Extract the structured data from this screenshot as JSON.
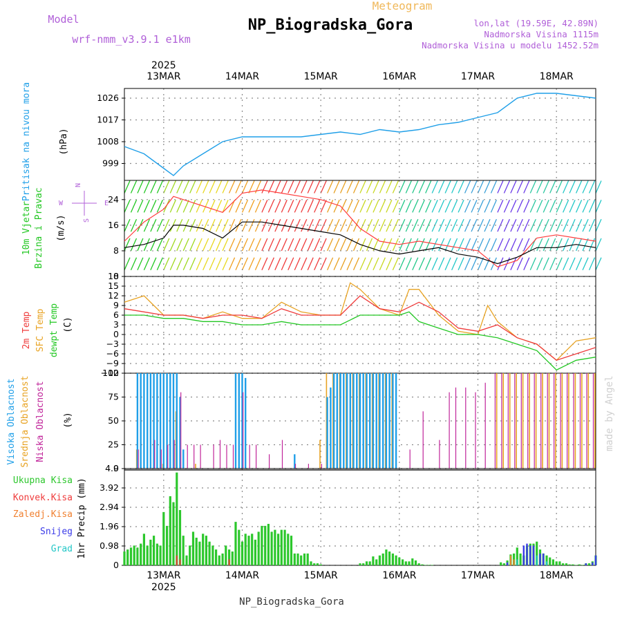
{
  "header": {
    "title": "NP_Biogradska_Gora",
    "product": "Meteogram",
    "model_label": "Model",
    "model_name": "wrf-nmm_v3.9.1 e1km",
    "coords": "lon,lat (19.59E, 42.89N)",
    "altitude": "Nadmorska Visina 1115m",
    "model_altitude": "Nadmorska Visina u modelu 1452.52m",
    "footer": "NP_Biogradska_Gora",
    "watermark": "made by Angel"
  },
  "time_axis": {
    "year": "2025",
    "days": [
      "13MAR",
      "14MAR",
      "15MAR",
      "16MAR",
      "17MAR",
      "18MAR"
    ],
    "start_hours": -12,
    "end_hours": 132
  },
  "colors": {
    "pressure": "#1f9fe8",
    "wind_speed": "#000000",
    "wind_gust": "#ff3b3b",
    "temp_2m": "#ef3b3b",
    "temp_sfc": "#e8a323",
    "dewpoint": "#22c722",
    "cloud_high": "#1f9fe8",
    "cloud_mid": "#e8a323",
    "cloud_low": "#c0249a",
    "precip_total": "#2cc72c",
    "precip_conv": "#ef3b3b",
    "precip_frozen": "#f08030",
    "precip_snow": "#3a3ae8",
    "precip_graupel": "#22c7c7",
    "label_purple": "#b05fd8",
    "label_orange": "#f0b85a"
  },
  "chart_data": [
    {
      "type": "line",
      "panel": "pressure",
      "ylabel": "Pritisak na nivou mora",
      "unit": "(hPa)",
      "yticks": [
        999,
        1008,
        1017,
        1026
      ],
      "ylim": [
        992,
        1030
      ],
      "series": [
        {
          "x": [
            -12,
            -6,
            0,
            3,
            6,
            12,
            18,
            24,
            30,
            36,
            42,
            48,
            54,
            60,
            66,
            72,
            78,
            84,
            90,
            96,
            102,
            108,
            114,
            120,
            126,
            132
          ],
          "values": [
            1006,
            1003,
            997,
            994,
            998,
            1003,
            1008,
            1010,
            1010,
            1010,
            1010,
            1011,
            1012,
            1011,
            1013,
            1012,
            1013,
            1015,
            1016,
            1018,
            1020,
            1026,
            1028,
            1028,
            1027,
            1026
          ]
        }
      ]
    },
    {
      "type": "line",
      "panel": "wind",
      "ylabel": [
        "10m Vjetar",
        "Brzina i Pravac"
      ],
      "unit": "(m/s)",
      "compass": [
        "N",
        "W",
        "E",
        "S"
      ],
      "yticks": [
        0,
        8,
        16,
        24
      ],
      "ylim": [
        0,
        30
      ],
      "series": [
        {
          "x": [
            -12,
            -6,
            0,
            3,
            6,
            12,
            18,
            24,
            30,
            36,
            42,
            48,
            54,
            60,
            66,
            72,
            78,
            84,
            90,
            96,
            102,
            108,
            114,
            120,
            126,
            132
          ],
          "values": [
            9,
            10,
            12,
            16,
            16,
            15,
            12,
            17,
            17,
            16,
            15,
            14,
            13,
            10,
            8,
            7,
            8,
            9,
            7,
            6,
            4,
            6,
            9,
            9,
            10,
            9
          ]
        },
        {
          "x": [
            -12,
            -6,
            0,
            3,
            6,
            12,
            18,
            24,
            30,
            36,
            42,
            48,
            54,
            60,
            66,
            72,
            78,
            84,
            90,
            96,
            102,
            108,
            114,
            120,
            126,
            132
          ],
          "values": [
            11,
            17,
            21,
            25,
            24,
            22,
            20,
            26,
            27,
            26,
            25,
            24,
            22,
            15,
            11,
            10,
            11,
            10,
            9,
            8,
            3,
            5,
            12,
            13,
            12,
            11
          ]
        }
      ]
    },
    {
      "type": "line",
      "panel": "temperature",
      "ylabel": [
        "2m Temp",
        "SFC Temp",
        "dewpt Temp"
      ],
      "unit": "(C)",
      "yticks": [
        -12,
        -9,
        -6,
        -3,
        0,
        3,
        6,
        9,
        12,
        15,
        18
      ],
      "ylim": [
        -12,
        18
      ],
      "series": [
        {
          "name": "2m Temp",
          "x": [
            -12,
            -6,
            0,
            6,
            12,
            18,
            24,
            30,
            36,
            42,
            48,
            54,
            60,
            66,
            72,
            78,
            84,
            90,
            96,
            102,
            108,
            114,
            120,
            126,
            132
          ],
          "values": [
            8,
            7,
            6,
            6,
            5,
            6,
            6,
            5,
            8,
            6,
            6,
            6,
            12,
            8,
            7,
            10,
            7,
            2,
            1,
            3,
            -1,
            -3,
            -8,
            -6,
            -4
          ]
        },
        {
          "name": "SFC Temp",
          "x": [
            -12,
            -6,
            -3,
            0,
            6,
            12,
            18,
            24,
            30,
            36,
            42,
            48,
            54,
            57,
            60,
            66,
            72,
            75,
            78,
            84,
            90,
            96,
            99,
            102,
            108,
            114,
            120,
            126,
            132
          ],
          "values": [
            10,
            12,
            9,
            6,
            6,
            5,
            7,
            5,
            5,
            10,
            7,
            6,
            6,
            16,
            14,
            8,
            6,
            14,
            14,
            6,
            1,
            0,
            9,
            4,
            -1,
            -3,
            -8,
            -2,
            -1
          ]
        },
        {
          "name": "dewpt Temp",
          "x": [
            -12,
            -6,
            0,
            6,
            12,
            18,
            24,
            30,
            36,
            42,
            48,
            54,
            60,
            66,
            72,
            75,
            78,
            84,
            90,
            96,
            102,
            108,
            114,
            120,
            126,
            132
          ],
          "values": [
            6,
            6,
            5,
            5,
            4,
            4,
            3,
            3,
            4,
            3,
            3,
            3,
            6,
            6,
            6,
            7,
            4,
            2,
            0,
            0,
            -1,
            -3,
            -5,
            -11,
            -8,
            -7
          ]
        }
      ]
    },
    {
      "type": "bar",
      "panel": "cloud",
      "ylabel": [
        "Visoka Oblacnost",
        "Srednja Oblacnost",
        "Niska Oblacnost"
      ],
      "unit": "(%)",
      "yticks": [
        0,
        25,
        50,
        75,
        100
      ],
      "ylim": [
        0,
        100
      ],
      "series": [
        {
          "name": "Visoka Oblacnost",
          "x": [
            -8,
            -7,
            -6,
            -5,
            -4,
            -3,
            -2,
            -1,
            0,
            1,
            2,
            3,
            4,
            5,
            6,
            22,
            23,
            24,
            25,
            40,
            50,
            51,
            52,
            53,
            54,
            55,
            56,
            57,
            58,
            59,
            60,
            61,
            62,
            63,
            64,
            65,
            66,
            67,
            68,
            69,
            70,
            71
          ],
          "values": [
            100,
            100,
            100,
            100,
            100,
            100,
            100,
            100,
            100,
            100,
            100,
            100,
            100,
            75,
            20,
            100,
            100,
            100,
            95,
            15,
            75,
            85,
            100,
            100,
            100,
            100,
            100,
            100,
            100,
            100,
            100,
            100,
            100,
            100,
            100,
            100,
            100,
            100,
            100,
            100,
            100,
            100
          ]
        },
        {
          "name": "Srednja Oblacnost",
          "x": [
            -8,
            0,
            4,
            10,
            48,
            50,
            52,
            54,
            56,
            58,
            60,
            62,
            64,
            66,
            68,
            70,
            102,
            104,
            106,
            108,
            110,
            112,
            114,
            116,
            118,
            120,
            122,
            124,
            126,
            128,
            130,
            132
          ],
          "values": [
            20,
            5,
            60,
            5,
            30,
            100,
            100,
            100,
            100,
            100,
            100,
            100,
            100,
            100,
            100,
            100,
            100,
            100,
            100,
            100,
            100,
            100,
            100,
            100,
            100,
            100,
            100,
            100,
            100,
            100,
            100,
            100
          ]
        },
        {
          "name": "Niska Oblacnost",
          "x": [
            -8,
            -3,
            -1,
            1,
            3,
            5,
            7,
            9,
            11,
            15,
            17,
            19,
            21,
            24,
            26,
            28,
            32,
            36,
            40,
            44,
            48,
            75,
            79,
            84,
            87,
            89,
            92,
            95,
            98,
            101,
            103,
            105,
            107,
            109,
            111,
            113,
            115,
            117,
            119,
            121,
            123,
            125,
            127,
            129,
            131
          ],
          "values": [
            20,
            30,
            20,
            25,
            30,
            80,
            25,
            25,
            25,
            25,
            30,
            25,
            25,
            80,
            25,
            25,
            15,
            30,
            5,
            5,
            5,
            20,
            60,
            30,
            80,
            85,
            85,
            80,
            90,
            100,
            100,
            100,
            100,
            100,
            100,
            100,
            100,
            100,
            100,
            100,
            100,
            100,
            100,
            100,
            100
          ]
        }
      ]
    },
    {
      "type": "bar",
      "panel": "precip",
      "ylabel": [
        "Ukupna Kisa",
        "Konvek.Kisa",
        "Zaledj.Kisa",
        "Snijeg",
        "Grad"
      ],
      "unit": "1hr Precip (mm)",
      "yticks": [
        0,
        0.98,
        1.96,
        2.94,
        3.92,
        4.9
      ],
      "ylim": [
        0,
        4.9
      ],
      "series": [
        {
          "name": "Ukupna Kisa",
          "x": [
            -12,
            -11,
            -10,
            -9,
            -8,
            -7,
            -6,
            -5,
            -4,
            -3,
            -2,
            -1,
            0,
            1,
            2,
            3,
            4,
            5,
            6,
            7,
            8,
            9,
            10,
            11,
            12,
            13,
            14,
            15,
            16,
            17,
            18,
            19,
            20,
            21,
            22,
            23,
            24,
            25,
            26,
            27,
            28,
            29,
            30,
            31,
            32,
            33,
            34,
            35,
            36,
            37,
            38,
            39,
            40,
            41,
            42,
            43,
            44,
            45,
            46,
            47,
            48,
            60,
            61,
            62,
            63,
            64,
            65,
            66,
            67,
            68,
            69,
            70,
            71,
            72,
            73,
            74,
            75,
            76,
            77,
            78,
            79,
            80,
            81,
            82,
            103,
            104,
            105,
            106,
            107,
            108,
            109,
            110,
            111,
            112,
            113,
            114,
            115,
            116,
            117,
            118,
            119,
            120,
            121,
            122,
            123,
            124,
            125,
            126,
            127,
            128,
            129,
            130,
            131,
            132
          ],
          "values": [
            0.7,
            0.8,
            0.9,
            1.0,
            0.9,
            1.1,
            1.6,
            1.0,
            1.3,
            1.5,
            1.1,
            1.0,
            2.7,
            2.0,
            3.5,
            3.2,
            4.7,
            2.8,
            1.5,
            0.5,
            1.0,
            1.7,
            1.4,
            1.2,
            1.6,
            1.5,
            1.2,
            1.0,
            0.8,
            0.5,
            0.6,
            1.0,
            0.8,
            0.7,
            2.2,
            1.8,
            1.2,
            1.6,
            1.5,
            1.6,
            1.3,
            1.7,
            2.0,
            2.0,
            2.1,
            1.7,
            1.8,
            1.6,
            1.8,
            1.8,
            1.6,
            1.5,
            0.6,
            0.6,
            0.5,
            0.6,
            0.6,
            0.2,
            0.1,
            0.1,
            0.05,
            0.1,
            0.1,
            0.2,
            0.2,
            0.45,
            0.3,
            0.5,
            0.6,
            0.8,
            0.7,
            0.6,
            0.5,
            0.4,
            0.3,
            0.2,
            0.2,
            0.35,
            0.25,
            0.1,
            0.05,
            0.02,
            0.02,
            0.02,
            0.15,
            0.1,
            0.25,
            0.55,
            0.6,
            0.9,
            0.6,
            0.5,
            1.0,
            1.1,
            1.1,
            1.2,
            0.8,
            0.6,
            0.5,
            0.4,
            0.3,
            0.2,
            0.2,
            0.1,
            0.1,
            0.05,
            0.05,
            0.02,
            0.05,
            0.02,
            0.1,
            0.1,
            0.2,
            0.5
          ]
        },
        {
          "name": "Konvek.Kisa",
          "x": [
            4,
            5,
            20
          ],
          "values": [
            0.5,
            0.3,
            0.3
          ]
        },
        {
          "name": "Zaledj.Kisa",
          "x": [
            106,
            107
          ],
          "values": [
            0.5,
            0.3
          ]
        },
        {
          "name": "Snijeg",
          "x": [
            105,
            110,
            111,
            112,
            113,
            115,
            116,
            129,
            131,
            132
          ],
          "values": [
            0.15,
            1.0,
            1.1,
            1.0,
            1.0,
            0.6,
            0.6,
            0.1,
            0.15,
            0.5
          ]
        },
        {
          "name": "Grad",
          "x": [
            108,
            114,
            117
          ],
          "values": [
            0.3,
            0.5,
            0.2
          ]
        }
      ]
    }
  ]
}
